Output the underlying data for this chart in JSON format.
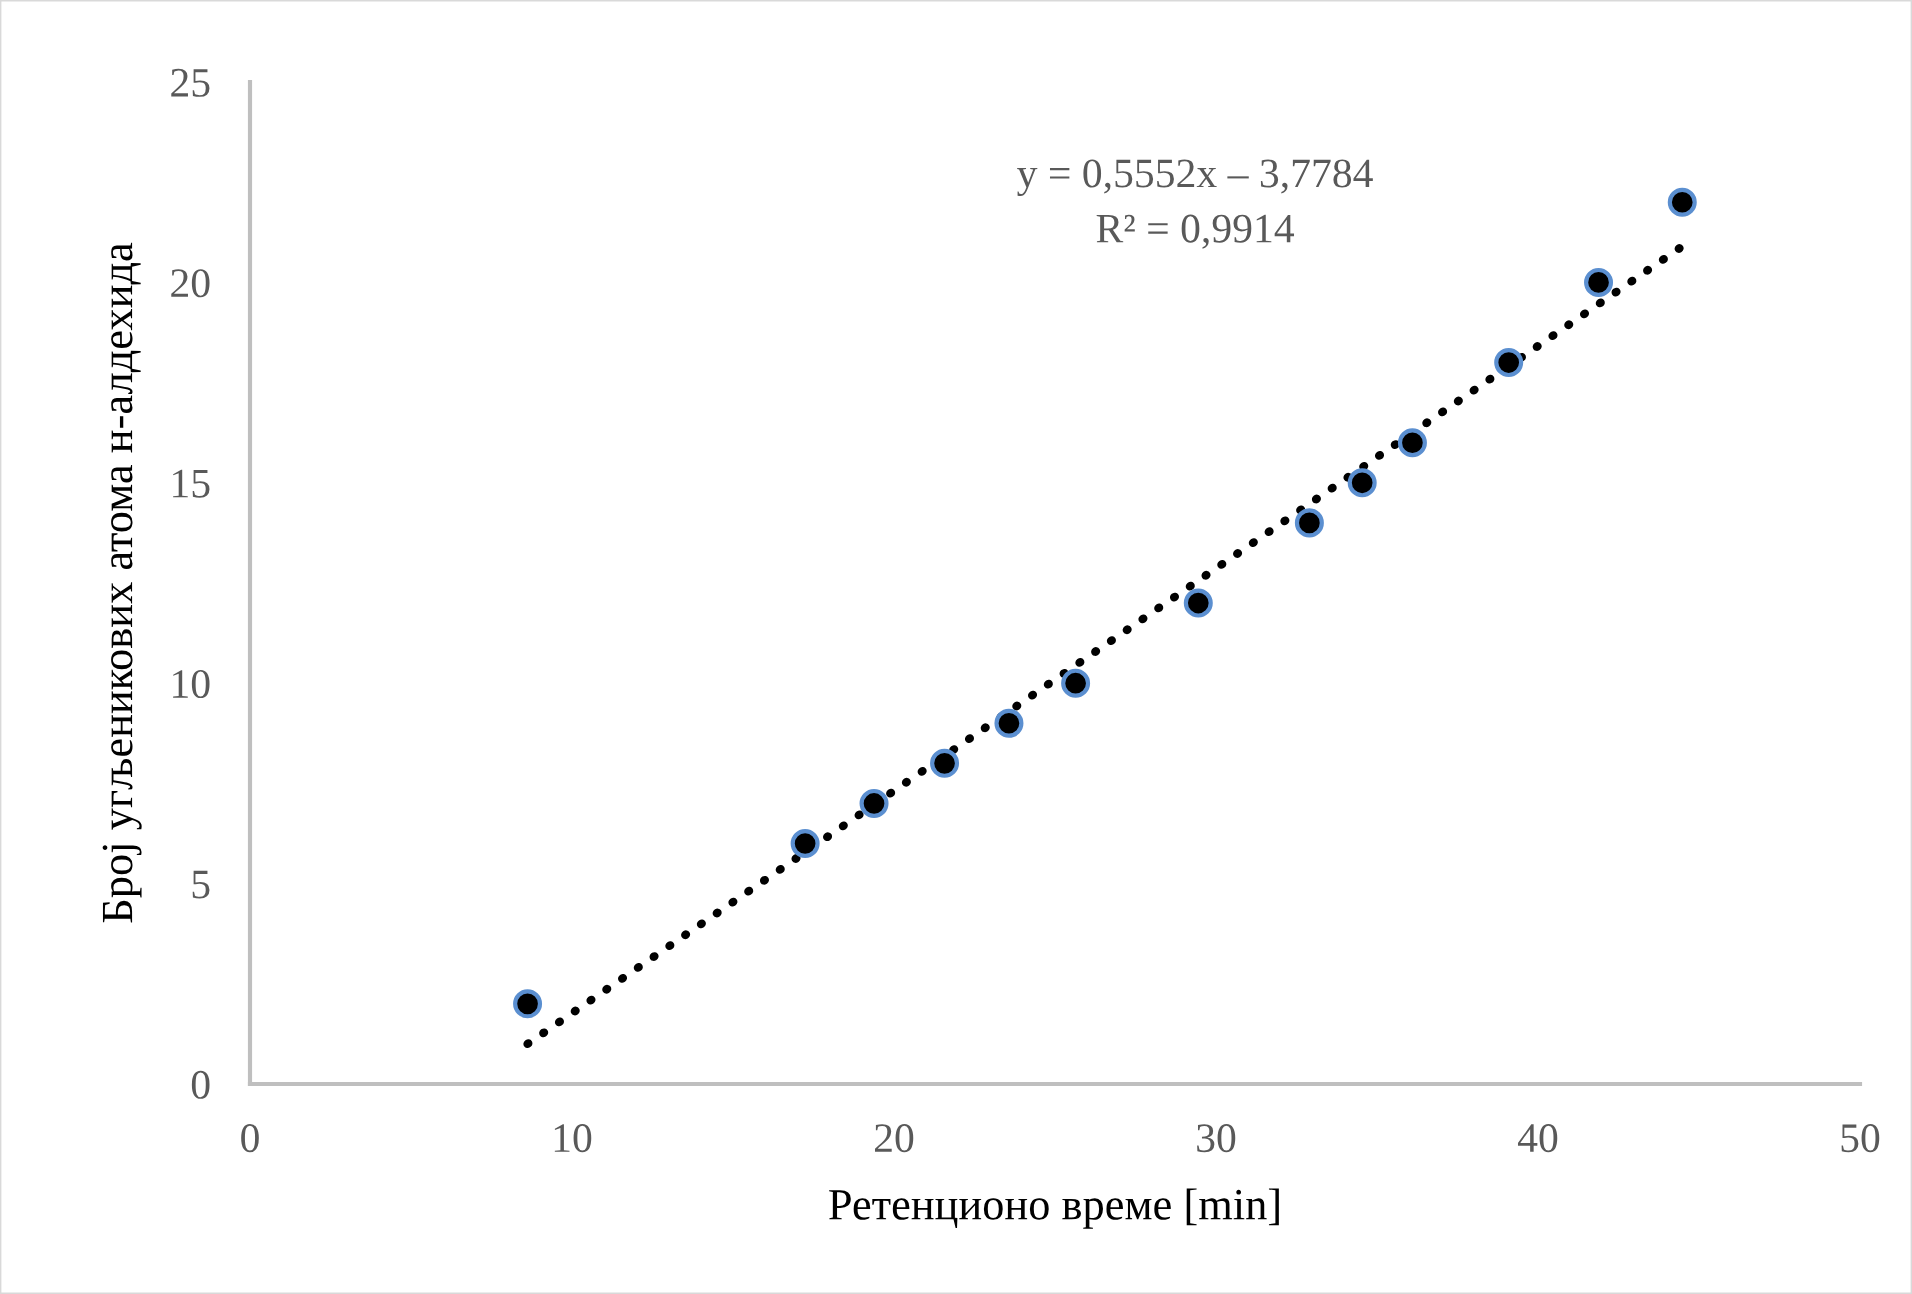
{
  "chart_data": {
    "type": "scatter",
    "xlabel": "Ретенционо време [min]",
    "ylabel": "Број угљеникових атома н-алдехида",
    "xlim": [
      0,
      50
    ],
    "xticks": [
      0,
      10,
      20,
      30,
      40,
      50
    ],
    "ylim": [
      0,
      25
    ],
    "yticks": [
      0,
      5,
      10,
      15,
      20,
      25
    ],
    "grid": false,
    "marker": "circle",
    "series": [
      {
        "color": "#000000",
        "x": [
          8.62,
          17.24,
          19.38,
          21.57,
          23.57,
          25.64,
          29.45,
          32.9,
          34.54,
          36.1,
          39.09,
          41.88,
          44.48
        ],
        "values": [
          2,
          6,
          7,
          8,
          9,
          10,
          12,
          14,
          15,
          16,
          18,
          20,
          22
        ]
      },
      {
        "type": "line",
        "color": "#000000",
        "line_style": "dotted",
        "marker": "none",
        "x": [
          8.62,
          44.48
        ],
        "values": [
          1.0,
          20.9
        ]
      }
    ],
    "annotations": [
      "y = 0,5552x – 3,7784",
      "R² = 0,9914"
    ]
  }
}
